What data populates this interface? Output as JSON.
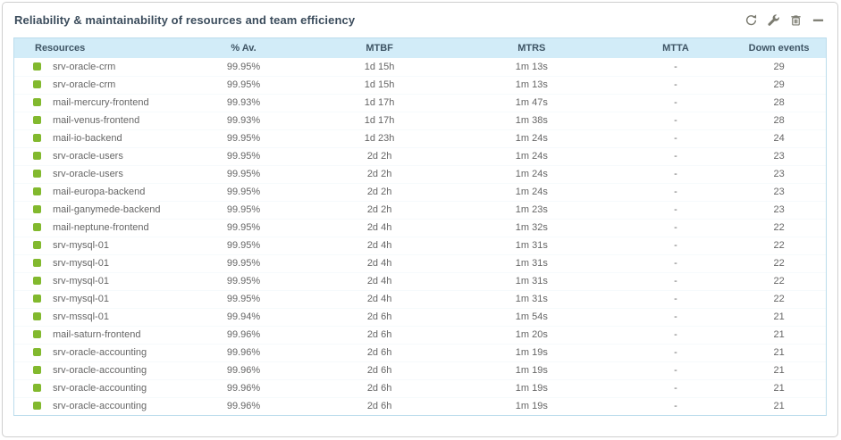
{
  "widget": {
    "title": "Reliability & maintainability of resources and team efficiency",
    "toolbar": [
      {
        "name": "refresh-icon",
        "action": "refresh"
      },
      {
        "name": "wrench-icon",
        "action": "configure"
      },
      {
        "name": "trash-icon",
        "action": "delete"
      },
      {
        "name": "minimize-icon",
        "action": "minimize"
      }
    ]
  },
  "colors": {
    "header_bg": "#d2ecf8",
    "header_text": "#3f5565",
    "panel_border": "#bcdcec",
    "row_text": "#666666",
    "status_ok_green": "#82b92e",
    "icon_grey": "#7b7b70",
    "title_text": "#3b4c5c"
  },
  "table": {
    "columns": [
      {
        "label": "Resources",
        "key": "resource"
      },
      {
        "label": "% Av.",
        "key": "availability"
      },
      {
        "label": "MTBF",
        "key": "mtbf"
      },
      {
        "label": "MTRS",
        "key": "mtrs"
      },
      {
        "label": "MTTA",
        "key": "mtta"
      },
      {
        "label": "Down events",
        "key": "down_events"
      }
    ],
    "rows": [
      {
        "status": "ok",
        "resource": "srv-oracle-crm",
        "availability": "99.95%",
        "mtbf": "1d 15h",
        "mtrs": "1m 13s",
        "mtta": "-",
        "down_events": "29"
      },
      {
        "status": "ok",
        "resource": "srv-oracle-crm",
        "availability": "99.95%",
        "mtbf": "1d 15h",
        "mtrs": "1m 13s",
        "mtta": "-",
        "down_events": "29"
      },
      {
        "status": "ok",
        "resource": "mail-mercury-frontend",
        "availability": "99.93%",
        "mtbf": "1d 17h",
        "mtrs": "1m 47s",
        "mtta": "-",
        "down_events": "28"
      },
      {
        "status": "ok",
        "resource": "mail-venus-frontend",
        "availability": "99.93%",
        "mtbf": "1d 17h",
        "mtrs": "1m 38s",
        "mtta": "-",
        "down_events": "28"
      },
      {
        "status": "ok",
        "resource": "mail-io-backend",
        "availability": "99.95%",
        "mtbf": "1d 23h",
        "mtrs": "1m 24s",
        "mtta": "-",
        "down_events": "24"
      },
      {
        "status": "ok",
        "resource": "srv-oracle-users",
        "availability": "99.95%",
        "mtbf": "2d 2h",
        "mtrs": "1m 24s",
        "mtta": "-",
        "down_events": "23"
      },
      {
        "status": "ok",
        "resource": "srv-oracle-users",
        "availability": "99.95%",
        "mtbf": "2d 2h",
        "mtrs": "1m 24s",
        "mtta": "-",
        "down_events": "23"
      },
      {
        "status": "ok",
        "resource": "mail-europa-backend",
        "availability": "99.95%",
        "mtbf": "2d 2h",
        "mtrs": "1m 24s",
        "mtta": "-",
        "down_events": "23"
      },
      {
        "status": "ok",
        "resource": "mail-ganymede-backend",
        "availability": "99.95%",
        "mtbf": "2d 2h",
        "mtrs": "1m 23s",
        "mtta": "-",
        "down_events": "23"
      },
      {
        "status": "ok",
        "resource": "mail-neptune-frontend",
        "availability": "99.95%",
        "mtbf": "2d 4h",
        "mtrs": "1m 32s",
        "mtta": "-",
        "down_events": "22"
      },
      {
        "status": "ok",
        "resource": "srv-mysql-01",
        "availability": "99.95%",
        "mtbf": "2d 4h",
        "mtrs": "1m 31s",
        "mtta": "-",
        "down_events": "22"
      },
      {
        "status": "ok",
        "resource": "srv-mysql-01",
        "availability": "99.95%",
        "mtbf": "2d 4h",
        "mtrs": "1m 31s",
        "mtta": "-",
        "down_events": "22"
      },
      {
        "status": "ok",
        "resource": "srv-mysql-01",
        "availability": "99.95%",
        "mtbf": "2d 4h",
        "mtrs": "1m 31s",
        "mtta": "-",
        "down_events": "22"
      },
      {
        "status": "ok",
        "resource": "srv-mysql-01",
        "availability": "99.95%",
        "mtbf": "2d 4h",
        "mtrs": "1m 31s",
        "mtta": "-",
        "down_events": "22"
      },
      {
        "status": "ok",
        "resource": "srv-mssql-01",
        "availability": "99.94%",
        "mtbf": "2d 6h",
        "mtrs": "1m 54s",
        "mtta": "-",
        "down_events": "21"
      },
      {
        "status": "ok",
        "resource": "mail-saturn-frontend",
        "availability": "99.96%",
        "mtbf": "2d 6h",
        "mtrs": "1m 20s",
        "mtta": "-",
        "down_events": "21"
      },
      {
        "status": "ok",
        "resource": "srv-oracle-accounting",
        "availability": "99.96%",
        "mtbf": "2d 6h",
        "mtrs": "1m 19s",
        "mtta": "-",
        "down_events": "21"
      },
      {
        "status": "ok",
        "resource": "srv-oracle-accounting",
        "availability": "99.96%",
        "mtbf": "2d 6h",
        "mtrs": "1m 19s",
        "mtta": "-",
        "down_events": "21"
      },
      {
        "status": "ok",
        "resource": "srv-oracle-accounting",
        "availability": "99.96%",
        "mtbf": "2d 6h",
        "mtrs": "1m 19s",
        "mtta": "-",
        "down_events": "21"
      },
      {
        "status": "ok",
        "resource": "srv-oracle-accounting",
        "availability": "99.96%",
        "mtbf": "2d 6h",
        "mtrs": "1m 19s",
        "mtta": "-",
        "down_events": "21"
      }
    ]
  }
}
